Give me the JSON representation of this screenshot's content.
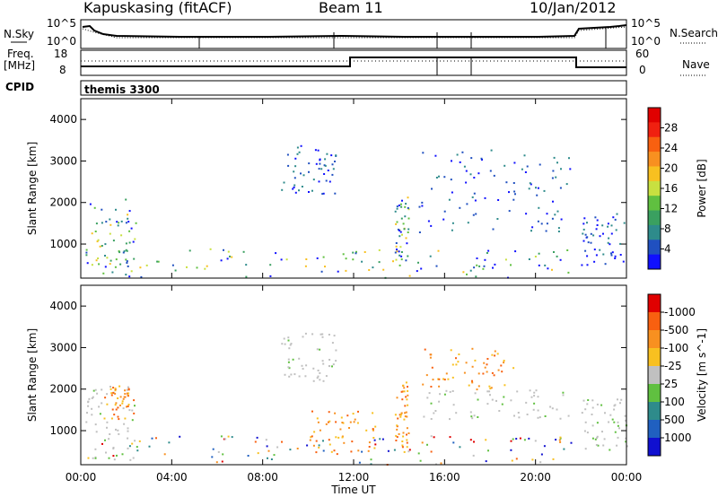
{
  "header": {
    "station": "Kapuskasing (fitACF)",
    "beam": "Beam 11",
    "date": "10/Jan/2012"
  },
  "top_panels": {
    "nsky_label": "N.Sky",
    "nsky_ticks": [
      "10^5",
      "10^0"
    ],
    "nsearch_label": "N.Search",
    "freq_label_line1": "Freq.",
    "freq_label_line2": "[MHz]",
    "freq_ticks": [
      "18",
      "8"
    ],
    "nave_ticks": [
      "60",
      "0"
    ],
    "nave_label": "Nave",
    "cpid_label": "CPID",
    "cpid_value": "themis 3300"
  },
  "chart_data": [
    {
      "type": "heatmap",
      "panel": "power",
      "title": "",
      "xlabel": "",
      "ylabel": "Slant Range [km]",
      "x_ticks": [
        "00:00",
        "04:00",
        "08:00",
        "12:00",
        "16:00",
        "20:00",
        "00:00"
      ],
      "xlim_hours": [
        0,
        24
      ],
      "ylim": [
        180,
        4500
      ],
      "y_ticks": [
        1000,
        2000,
        3000,
        4000
      ],
      "colorbar": {
        "label": "Power [dB]",
        "ticks": [
          4,
          8,
          12,
          16,
          20,
          24,
          28
        ],
        "colors": [
          "#1010ff",
          "#2050c0",
          "#2e8b8b",
          "#3aa060",
          "#60c040",
          "#c8e040",
          "#f8c020",
          "#f89020",
          "#f86010",
          "#f02010",
          "#e00000"
        ]
      },
      "scatter_regions": [
        {
          "t": [
            0.2,
            2.4
          ],
          "r": [
            300,
            2100
          ],
          "level": "mixed"
        },
        {
          "t": [
            8.8,
            11.2
          ],
          "r": [
            2200,
            3400
          ],
          "level": "low"
        },
        {
          "t": [
            13.8,
            14.4
          ],
          "r": [
            600,
            2200
          ],
          "level": "mixed"
        },
        {
          "t": [
            14.8,
            21.5
          ],
          "r": [
            1300,
            3300
          ],
          "level": "low"
        },
        {
          "t": [
            22.0,
            24.0
          ],
          "r": [
            500,
            1800
          ],
          "level": "low"
        },
        {
          "t": [
            0.2,
            22.0
          ],
          "r": [
            200,
            900
          ],
          "level": "mixed"
        }
      ]
    },
    {
      "type": "heatmap",
      "panel": "velocity",
      "title": "",
      "xlabel": "Time UT",
      "ylabel": "Slant Range [km]",
      "x_ticks": [
        "00:00",
        "04:00",
        "08:00",
        "12:00",
        "16:00",
        "20:00",
        "00:00"
      ],
      "xlim_hours": [
        0,
        24
      ],
      "ylim": [
        180,
        4500
      ],
      "y_ticks": [
        1000,
        2000,
        3000,
        4000
      ],
      "colorbar": {
        "label": "Velocity [m s^-1]",
        "ticks": [
          "1000",
          "500",
          "100",
          "25",
          "-25",
          "-100",
          "-500",
          "-1000"
        ],
        "colors": [
          "#1010d0",
          "#2060c0",
          "#2e8b8b",
          "#60c040",
          "#c0c0c0",
          "#f8c020",
          "#f89020",
          "#f86010",
          "#e00000"
        ]
      },
      "scatter_regions": [
        {
          "t": [
            0.2,
            2.4
          ],
          "r": [
            300,
            2100
          ],
          "level": "ground"
        },
        {
          "t": [
            1.0,
            2.3
          ],
          "r": [
            1300,
            2100
          ],
          "level": "away"
        },
        {
          "t": [
            8.8,
            11.2
          ],
          "r": [
            2200,
            3400
          ],
          "level": "ground"
        },
        {
          "t": [
            10.0,
            13.0
          ],
          "r": [
            500,
            1500
          ],
          "level": "away"
        },
        {
          "t": [
            13.8,
            14.4
          ],
          "r": [
            600,
            2200
          ],
          "level": "away"
        },
        {
          "t": [
            15.0,
            19.0
          ],
          "r": [
            2000,
            3000
          ],
          "level": "away"
        },
        {
          "t": [
            15.0,
            21.5
          ],
          "r": [
            1300,
            2000
          ],
          "level": "ground"
        },
        {
          "t": [
            22.0,
            24.0
          ],
          "r": [
            500,
            1800
          ],
          "level": "ground"
        },
        {
          "t": [
            0.2,
            22.0
          ],
          "r": [
            200,
            900
          ],
          "level": "mixed"
        }
      ]
    }
  ]
}
